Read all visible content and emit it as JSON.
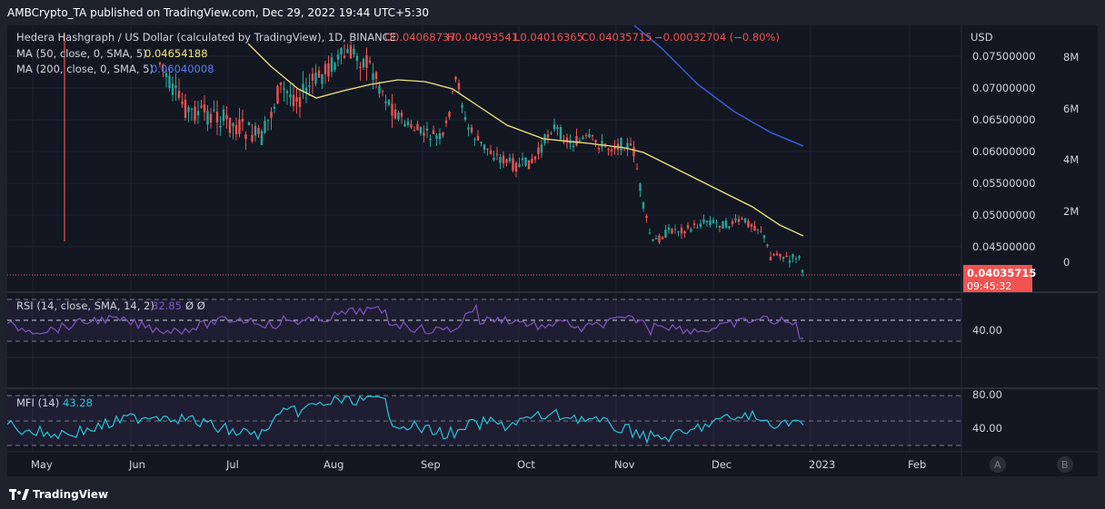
{
  "header": {
    "publish_line": "AMBCrypto_TA published on TradingView.com, Dec 29, 2022 19:44 UTC+5:30"
  },
  "legend": {
    "symbol": "Hedera Hashgraph / US Dollar (calculated by TradingView), 1D, BINANCE",
    "open": "O0.04068737",
    "high": "H0.04093541",
    "low": "L0.04016365",
    "close": "C0.04035715",
    "change": "−0.00032704 (−0.80%)",
    "ma50_label": "MA (50, close, 0, SMA, 5)",
    "ma50_value": "0.04654188",
    "ma200_label": "MA (200, close, 0, SMA, 5)",
    "ma200_value": "0.06040008"
  },
  "price_axis": {
    "currency": "USD",
    "ticks": [
      "0.07500000",
      "0.07000000",
      "0.06500000",
      "0.06000000",
      "0.05500000",
      "0.05000000",
      "0.04500000"
    ],
    "last_price": "0.04035715",
    "countdown": "09:45:32"
  },
  "volume_axis": {
    "ticks": [
      "8M",
      "6M",
      "4M",
      "2M",
      "0"
    ]
  },
  "rsi": {
    "label": "RSI (14, close, SMA, 14, 2)",
    "value": "32.85",
    "extra": "Ø Ø",
    "tick": "40.00"
  },
  "mfi": {
    "label": "MFI (14)",
    "value": "43.28",
    "ticks": [
      "80.00",
      "40.00"
    ]
  },
  "time_axis": {
    "labels": [
      "May",
      "Jun",
      "Jul",
      "Aug",
      "Sep",
      "Oct",
      "Nov",
      "Dec",
      "2023",
      "Feb"
    ]
  },
  "scale_buttons": {
    "a": "A",
    "b": "B"
  },
  "footer": {
    "brand": "TradingView"
  },
  "colors": {
    "up": "#26a69a",
    "down": "#ef5350",
    "ma50": "#f3e57c",
    "ma200": "#3d5bd6",
    "rsi": "#7e57c2",
    "mfi": "#26c6da"
  }
}
